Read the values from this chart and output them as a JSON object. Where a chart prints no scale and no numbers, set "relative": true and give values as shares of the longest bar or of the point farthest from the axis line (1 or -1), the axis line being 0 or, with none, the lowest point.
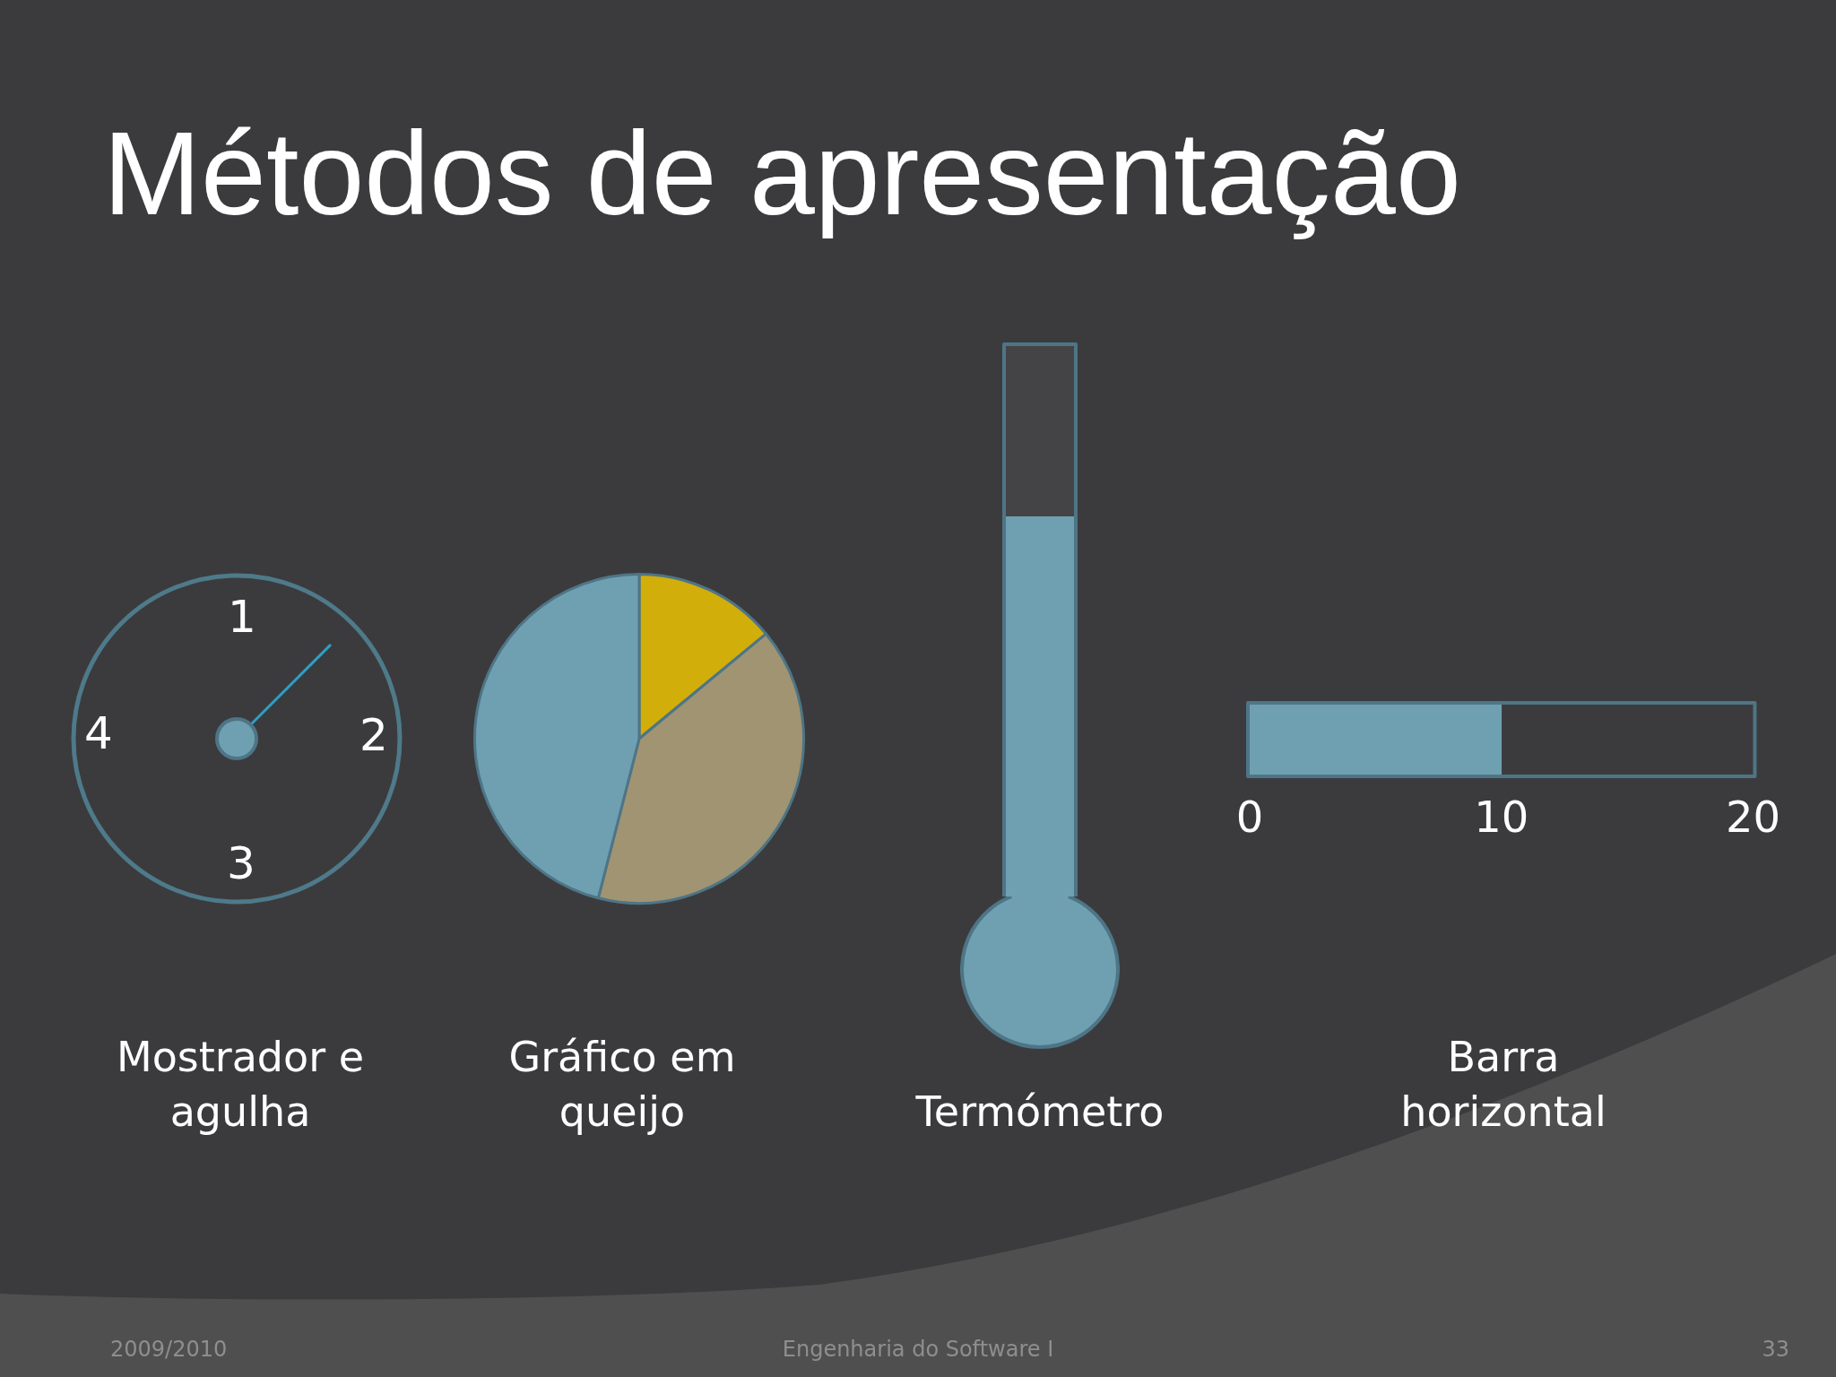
{
  "chart_data": [
    {
      "type": "other",
      "title": "Métodos de apresentação"
    },
    {
      "type": "other",
      "title": "Mostrador e agulha",
      "annotations": [
        "1",
        "2",
        "3",
        "4"
      ]
    },
    {
      "type": "pie",
      "title": "Gráfico em queijo",
      "categories": [
        null,
        null,
        null
      ],
      "values": [
        14,
        40,
        46
      ],
      "colors": [
        "#d2ae0b",
        "#a09473",
        "#6fa0b1"
      ]
    },
    {
      "type": "bar",
      "title": "Termómetro",
      "relative": true,
      "stacked": true,
      "categories": [
        null
      ],
      "series": [
        {
          "color": "#6fa0b1",
          "values": [
            0.69
          ]
        },
        {
          "color": "#444446",
          "values": [
            0.31
          ]
        }
      ]
    },
    {
      "type": "bar",
      "title": "Barra horizontal",
      "orientation": "horizontal",
      "categories": [
        null
      ],
      "values": [
        10
      ],
      "color": "#6fa0b1",
      "xlim": [
        0,
        20
      ],
      "xticks": [
        0,
        10,
        20
      ]
    },
    {
      "type": "other",
      "annotations": [
        "2009/2010",
        "Engenharia do Software I",
        "33"
      ]
    }
  ]
}
